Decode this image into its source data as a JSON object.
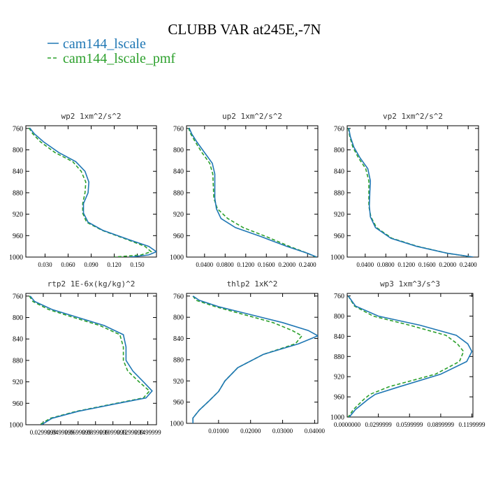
{
  "figure": {
    "title": "CLUBB VAR at245E,-7N"
  },
  "colors": {
    "lscale": "#1f77b4",
    "lscale_pmf": "#2ca02c"
  },
  "legend": [
    {
      "label": "cam144_lscale",
      "color": "#1f77b4",
      "dash": "solid"
    },
    {
      "label": "cam144_lscale_pmf",
      "color": "#2ca02c",
      "dash": "dashed"
    }
  ],
  "chart_data": [
    {
      "type": "line",
      "title": "wp2  1xm^2/s^2",
      "xlim": [
        0.005,
        0.175
      ],
      "ylim": [
        1000,
        755
      ],
      "y_ticks": [
        "760",
        "800",
        "840",
        "880",
        "920",
        "960",
        "1000"
      ],
      "x_ticks": [
        {
          "value": 0.03,
          "label": "0.030"
        },
        {
          "value": 0.06,
          "label": "0.060"
        },
        {
          "value": 0.09,
          "label": "0.090"
        },
        {
          "value": 0.12,
          "label": "0.120"
        },
        {
          "value": 0.15,
          "label": "0.150"
        }
      ],
      "series": [
        {
          "name": "cam144_lscale",
          "x": [
            0.01,
            0.016,
            0.028,
            0.048,
            0.07,
            0.082,
            0.087,
            0.086,
            0.08,
            0.08,
            0.086,
            0.105,
            0.14,
            0.165,
            0.175,
            0.165,
            0.14
          ],
          "y": [
            759,
            770,
            785,
            805,
            822,
            840,
            860,
            880,
            900,
            918,
            935,
            950,
            968,
            980,
            990,
            996,
            1000
          ]
        },
        {
          "name": "cam144_lscale_pmf",
          "x": [
            0.009,
            0.014,
            0.024,
            0.043,
            0.066,
            0.077,
            0.083,
            0.082,
            0.079,
            0.079,
            0.084,
            0.104,
            0.138,
            0.16,
            0.168,
            0.155,
            0.12
          ],
          "y": [
            759,
            770,
            785,
            805,
            822,
            840,
            860,
            880,
            900,
            918,
            935,
            950,
            968,
            980,
            990,
            996,
            1000
          ]
        }
      ]
    },
    {
      "type": "line",
      "title": "up2  1xm^2/s^2",
      "xlim": [
        0.005,
        0.26
      ],
      "ylim": [
        1000,
        755
      ],
      "y_ticks": [
        "760",
        "800",
        "840",
        "880",
        "920",
        "960",
        "1000"
      ],
      "x_ticks": [
        {
          "value": 0.04,
          "label": "0.0400"
        },
        {
          "value": 0.08,
          "label": "0.0800"
        },
        {
          "value": 0.12,
          "label": "0.1200"
        },
        {
          "value": 0.16,
          "label": "0.1600"
        },
        {
          "value": 0.2,
          "label": "0.2000"
        },
        {
          "value": 0.24,
          "label": "0.2400"
        }
      ],
      "series": [
        {
          "name": "cam144_lscale",
          "x": [
            0.01,
            0.015,
            0.025,
            0.04,
            0.055,
            0.06,
            0.06,
            0.06,
            0.063,
            0.072,
            0.1,
            0.15,
            0.2,
            0.24,
            0.258
          ],
          "y": [
            759,
            770,
            785,
            805,
            825,
            845,
            865,
            890,
            910,
            928,
            945,
            962,
            980,
            993,
            1000
          ]
        },
        {
          "name": "cam144_lscale_pmf",
          "x": [
            0.009,
            0.013,
            0.022,
            0.035,
            0.05,
            0.056,
            0.057,
            0.058,
            0.065,
            0.085,
            0.115,
            0.16,
            0.205,
            0.24,
            0.256
          ],
          "y": [
            759,
            770,
            785,
            805,
            825,
            845,
            865,
            890,
            910,
            928,
            945,
            962,
            980,
            993,
            1000
          ]
        }
      ]
    },
    {
      "type": "line",
      "title": "vp2  1xm^2/s^2",
      "xlim": [
        0.005,
        0.26
      ],
      "ylim": [
        1000,
        755
      ],
      "y_ticks": [
        "760",
        "800",
        "840",
        "880",
        "920",
        "960",
        "1000"
      ],
      "x_ticks": [
        {
          "value": 0.04,
          "label": "0.0400"
        },
        {
          "value": 0.08,
          "label": "0.0800"
        },
        {
          "value": 0.12,
          "label": "0.1200"
        },
        {
          "value": 0.16,
          "label": "0.1600"
        },
        {
          "value": 0.2,
          "label": "0.2000"
        },
        {
          "value": 0.24,
          "label": "0.2400"
        }
      ],
      "series": [
        {
          "name": "cam144_lscale",
          "x": [
            0.008,
            0.011,
            0.018,
            0.03,
            0.045,
            0.05,
            0.049,
            0.048,
            0.05,
            0.06,
            0.09,
            0.14,
            0.2,
            0.25
          ],
          "y": [
            759,
            775,
            795,
            815,
            835,
            858,
            880,
            905,
            925,
            945,
            965,
            980,
            993,
            1000
          ]
        },
        {
          "name": "cam144_lscale_pmf",
          "x": [
            0.007,
            0.01,
            0.016,
            0.027,
            0.041,
            0.047,
            0.047,
            0.047,
            0.051,
            0.062,
            0.092,
            0.142,
            0.2,
            0.248
          ],
          "y": [
            759,
            775,
            795,
            815,
            835,
            858,
            880,
            905,
            925,
            945,
            965,
            980,
            993,
            1000
          ]
        }
      ]
    },
    {
      "type": "line",
      "title": "rtp2  1E-6x(kg/kg)^2",
      "xlim": [
        0.01,
        0.16
      ],
      "ylim": [
        1000,
        755
      ],
      "y_ticks": [
        "760",
        "800",
        "840",
        "880",
        "920",
        "960",
        "1000"
      ],
      "x_ticks": [
        {
          "value": 0.03,
          "label": "0.0299999"
        },
        {
          "value": 0.05,
          "label": "0.0499999"
        },
        {
          "value": 0.07,
          "label": "0.0699999"
        },
        {
          "value": 0.09,
          "label": "0.0899999"
        },
        {
          "value": 0.11,
          "label": "0.1099999"
        },
        {
          "value": 0.13,
          "label": "0.1299999"
        },
        {
          "value": 0.15,
          "label": "0.1499999"
        }
      ],
      "series": [
        {
          "name": "cam144_lscale",
          "x": [
            0.015,
            0.02,
            0.04,
            0.07,
            0.1,
            0.122,
            0.125,
            0.125,
            0.133,
            0.145,
            0.155,
            0.148,
            0.11,
            0.07,
            0.04,
            0.028
          ],
          "y": [
            760,
            770,
            785,
            800,
            815,
            832,
            855,
            880,
            900,
            920,
            937,
            950,
            962,
            975,
            988,
            1000
          ]
        },
        {
          "name": "cam144_lscale_pmf",
          "x": [
            0.014,
            0.018,
            0.036,
            0.065,
            0.095,
            0.118,
            0.122,
            0.122,
            0.127,
            0.14,
            0.152,
            0.145,
            0.108,
            0.068,
            0.038,
            0.026
          ],
          "y": [
            760,
            770,
            785,
            800,
            815,
            832,
            855,
            880,
            900,
            920,
            937,
            950,
            962,
            975,
            988,
            1000
          ]
        }
      ]
    },
    {
      "type": "line",
      "title": "thlp2  1xK^2",
      "xlim": [
        0.0,
        0.041
      ],
      "ylim": [
        1000,
        755
      ],
      "y_ticks": [
        "760",
        "800",
        "840",
        "880",
        "920",
        "960",
        "1000"
      ],
      "x_ticks": [
        {
          "value": 0.01,
          "label": "0.01000"
        },
        {
          "value": 0.02,
          "label": "0.02000"
        },
        {
          "value": 0.03,
          "label": "0.03000"
        },
        {
          "value": 0.04,
          "label": "0.04000"
        }
      ],
      "series": [
        {
          "name": "cam144_lscale",
          "x": [
            0.002,
            0.004,
            0.01,
            0.02,
            0.03,
            0.038,
            0.041,
            0.035,
            0.024,
            0.016,
            0.012,
            0.01,
            0.007,
            0.004,
            0.002,
            0.002
          ],
          "y": [
            760,
            768,
            780,
            795,
            810,
            825,
            835,
            850,
            870,
            895,
            920,
            940,
            958,
            975,
            990,
            1000
          ]
        },
        {
          "name": "cam144_lscale_pmf",
          "x": [
            0.002,
            0.003,
            0.009,
            0.018,
            0.027,
            0.033,
            0.036,
            0.034,
            0.024,
            0.016,
            0.012,
            0.01,
            0.007,
            0.004,
            0.002,
            0.002
          ],
          "y": [
            760,
            768,
            780,
            795,
            810,
            825,
            835,
            850,
            870,
            895,
            920,
            940,
            958,
            975,
            990,
            1000
          ]
        }
      ]
    },
    {
      "type": "line",
      "title": "wp3  1xm^3/s^3",
      "xlim": [
        0.0,
        0.121
      ],
      "ylim": [
        1000,
        755
      ],
      "y_ticks": [
        "760",
        "800",
        "840",
        "880",
        "920",
        "960",
        "1000"
      ],
      "x_ticks": [
        {
          "value": 0.0,
          "label": "0.0000000"
        },
        {
          "value": 0.03,
          "label": "0.0299999"
        },
        {
          "value": 0.06,
          "label": "0.0599999"
        },
        {
          "value": 0.09,
          "label": "0.0899999"
        },
        {
          "value": 0.12,
          "label": "0.1199999"
        }
      ],
      "series": [
        {
          "name": "cam144_lscale",
          "x": [
            0.001,
            0.008,
            0.03,
            0.07,
            0.105,
            0.116,
            0.12,
            0.115,
            0.09,
            0.05,
            0.027,
            0.02,
            0.008,
            0.002
          ],
          "y": [
            760,
            780,
            800,
            818,
            838,
            855,
            870,
            890,
            915,
            940,
            955,
            965,
            985,
            1000
          ]
        },
        {
          "name": "cam144_lscale_pmf",
          "x": [
            0.001,
            0.007,
            0.025,
            0.06,
            0.095,
            0.106,
            0.112,
            0.108,
            0.085,
            0.04,
            0.022,
            0.016,
            0.006,
            0.001
          ],
          "y": [
            760,
            780,
            800,
            818,
            838,
            855,
            870,
            890,
            915,
            940,
            955,
            965,
            985,
            1000
          ]
        }
      ]
    }
  ]
}
